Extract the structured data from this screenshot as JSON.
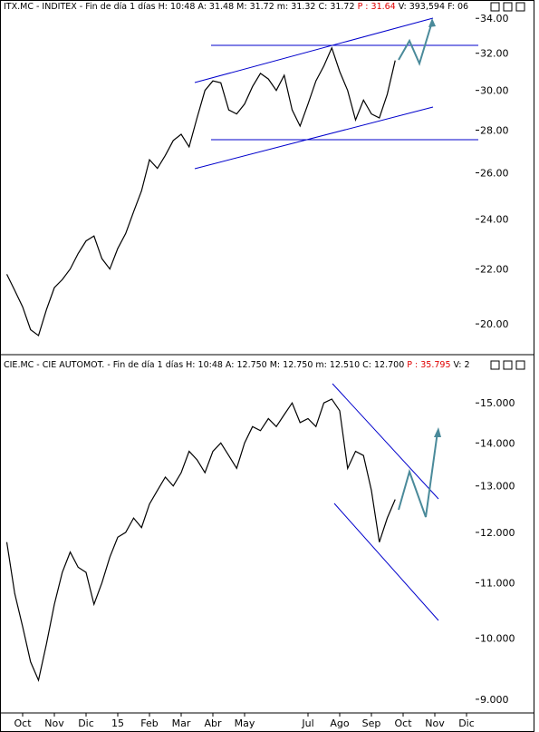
{
  "chart_data": [
    {
      "type": "line",
      "title": "ITX.MC - INDITEX - Fin de día 1 días H: 10:48 A: 31.48 M: 31.72 m: 31.32 C: 31.72",
      "price_label": "P : 31.64",
      "volume_label": "V: 393,594 F: 06",
      "log_scale": true,
      "grid": false,
      "color": "#000000",
      "values": [
        21.8,
        21.2,
        20.6,
        19.8,
        19.6,
        20.5,
        21.3,
        21.6,
        22.0,
        22.6,
        23.1,
        23.3,
        22.4,
        22.0,
        22.8,
        23.4,
        24.3,
        25.2,
        26.6,
        26.2,
        26.8,
        27.5,
        27.8,
        27.2,
        28.6,
        30.0,
        30.5,
        30.4,
        29.0,
        28.8,
        29.3,
        30.2,
        30.9,
        30.6,
        30.0,
        30.8,
        29.0,
        28.2,
        29.3,
        30.5,
        31.3,
        32.3,
        31.0,
        30.0,
        28.5,
        29.5,
        28.8,
        28.6,
        29.8,
        31.6,
        null,
        null,
        null,
        null,
        null,
        null,
        null,
        null,
        null,
        null,
        null,
        null
      ],
      "ylim": [
        19.05,
        35.1
      ],
      "yticks": [
        {
          "value": 20,
          "label": "20.00"
        },
        {
          "value": 22,
          "label": "22.00"
        },
        {
          "value": 24,
          "label": "24.00"
        },
        {
          "value": 26,
          "label": "26.00"
        },
        {
          "value": 28,
          "label": "28.00"
        },
        {
          "value": 30,
          "label": "30.00"
        },
        {
          "value": 32,
          "label": "32.00"
        },
        {
          "value": 34,
          "label": "34.00"
        }
      ]
    },
    {
      "type": "line",
      "title": "CIE.MC - CIE AUTOMOT. - Fin de día 1 días H: 10:48 A: 12.750 M: 12.750 m: 12.510 C: 12.700",
      "price_label": "P : 35.795",
      "volume_label": "V: 2",
      "log_scale": true,
      "grid": false,
      "color": "#000000",
      "categories": [
        null,
        null,
        "Oct",
        null,
        null,
        null,
        "Nov",
        null,
        null,
        null,
        "Dic",
        null,
        null,
        null,
        "15",
        null,
        null,
        null,
        "Feb",
        null,
        null,
        null,
        "Mar",
        null,
        null,
        null,
        "Abr",
        null,
        null,
        null,
        "May",
        null,
        null,
        null,
        null,
        null,
        null,
        null,
        "Jul",
        null,
        null,
        null,
        "Ago",
        null,
        null,
        null,
        "Sep",
        null,
        null,
        null,
        "Oct",
        null,
        null,
        null,
        "Nov",
        null,
        null,
        null,
        "Dic",
        null,
        null,
        null
      ],
      "values": [
        11.8,
        10.8,
        10.2,
        9.6,
        9.3,
        9.9,
        10.6,
        11.2,
        11.6,
        11.3,
        11.2,
        10.6,
        11.0,
        11.5,
        11.9,
        12.0,
        12.3,
        12.1,
        12.6,
        12.9,
        13.2,
        13.0,
        13.3,
        13.8,
        13.6,
        13.3,
        13.8,
        14.0,
        13.7,
        13.4,
        14.0,
        14.4,
        14.3,
        14.6,
        14.4,
        14.7,
        15.0,
        14.5,
        14.6,
        14.4,
        15.0,
        15.1,
        14.8,
        13.4,
        13.8,
        13.7,
        12.9,
        11.8,
        12.3,
        12.7,
        null,
        null,
        null,
        null,
        null,
        null,
        null,
        null,
        null,
        null,
        null,
        null
      ],
      "ylim": [
        8.79,
        16.2
      ],
      "yticks": [
        {
          "value": 9,
          "label": "9.000"
        },
        {
          "value": 10,
          "label": "10.000"
        },
        {
          "value": 11,
          "label": "11.000"
        },
        {
          "value": 12,
          "label": "12.000"
        },
        {
          "value": 13,
          "label": "13.000"
        },
        {
          "value": 14,
          "label": "14.000"
        },
        {
          "value": 15,
          "label": "15.000"
        }
      ]
    }
  ]
}
